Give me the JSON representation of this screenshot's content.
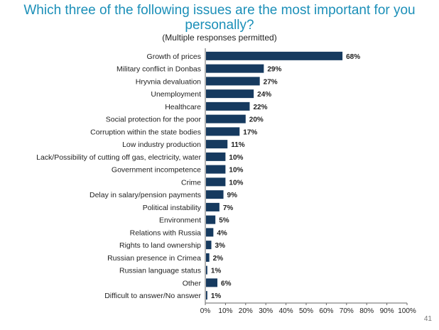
{
  "page": {
    "title": "Which three of the following issues are the most important for you personally?",
    "subtitle": "(Multiple responses permitted)",
    "page_number": "41"
  },
  "chart_data": {
    "type": "bar",
    "orientation": "horizontal",
    "categories": [
      "Growth of prices",
      "Military conflict in Donbas",
      "Hryvnia devaluation",
      "Unemployment",
      "Healthcare",
      "Social protection for the poor",
      "Corruption within the state bodies",
      "Low industry production",
      "Lack/Possibility of cutting off gas, electricity, water",
      "Government incompetence",
      "Crime",
      "Delay in salary/pension payments",
      "Political instability",
      "Environment",
      "Relations with Russia",
      "Rights to land ownership",
      "Russian presence in Crimea",
      "Russian language status",
      "Other",
      "Difficult to answer/No answer"
    ],
    "values": [
      68,
      29,
      27,
      24,
      22,
      20,
      17,
      11,
      10,
      10,
      10,
      9,
      7,
      5,
      4,
      3,
      2,
      1,
      6,
      1
    ],
    "value_labels": [
      "68%",
      "29%",
      "27%",
      "24%",
      "22%",
      "20%",
      "17%",
      "11%",
      "10%",
      "10%",
      "10%",
      "9%",
      "7%",
      "5%",
      "4%",
      "3%",
      "2%",
      "1%",
      "6%",
      "1%"
    ],
    "xlim": [
      0,
      100
    ],
    "xticks": [
      "0%",
      "10%",
      "20%",
      "30%",
      "40%",
      "50%",
      "60%",
      "70%",
      "80%",
      "90%",
      "100%"
    ],
    "bar_color": "#163a5f",
    "grid": false
  }
}
